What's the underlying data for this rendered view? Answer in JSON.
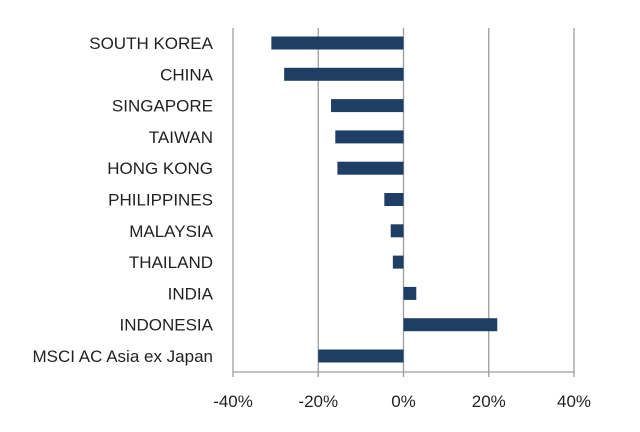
{
  "chart_data": {
    "type": "bar",
    "orientation": "horizontal",
    "categories": [
      "SOUTH KOREA",
      "CHINA",
      "SINGAPORE",
      "TAIWAN",
      "HONG KONG",
      "PHILIPPINES",
      "MALAYSIA",
      "THAILAND",
      "INDIA",
      "INDONESIA",
      "MSCI AC Asia ex Japan"
    ],
    "values": [
      -31,
      -28,
      -17,
      -16,
      -15.5,
      -4.5,
      -3,
      -2.5,
      3,
      22,
      -20
    ],
    "unit": "%",
    "xlim": [
      -40,
      40
    ],
    "xticks": [
      -40,
      -20,
      0,
      20,
      40
    ],
    "xtick_labels": [
      "-40%",
      "-20%",
      "0%",
      "20%",
      "40%"
    ],
    "gridlines": "vertical",
    "bar_color": "#1f3e66",
    "grid_color": "#9d9d9d",
    "title": "",
    "xlabel": "",
    "ylabel": ""
  }
}
